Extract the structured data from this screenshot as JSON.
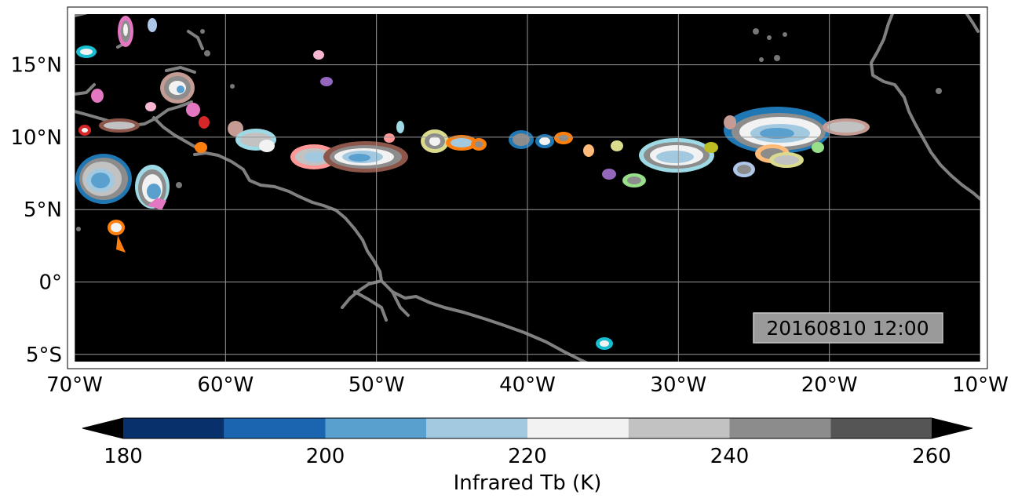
{
  "map": {
    "lon_labels": [
      "70°W",
      "60°W",
      "50°W",
      "40°W",
      "30°W",
      "20°W",
      "10°W"
    ],
    "lat_labels": [
      "15°N",
      "10°N",
      "5°N",
      "0°",
      "5°S"
    ],
    "lon_range": [
      -70,
      -10
    ],
    "lat_range": [
      -5.5,
      18.5
    ],
    "gridlines": true,
    "background_color": "#000000",
    "coastline_color": "#808080",
    "timestamp": "20160810 12:00"
  },
  "colorbar": {
    "title": "Infrared Tb (K)",
    "tick_labels": [
      "180",
      "200",
      "220",
      "240",
      "260"
    ],
    "levels": [
      180,
      190,
      200,
      210,
      220,
      230,
      240,
      250,
      260
    ],
    "colors": [
      "#08306b",
      "#1a64b0",
      "#5aa0cf",
      "#a2c9e0",
      "#f2f2f2",
      "#c2c2c2",
      "#8c8c8c",
      "#555555"
    ],
    "under_color": "#000000",
    "over_color": "#000000",
    "extend": "both"
  },
  "cloud_clusters": [
    {
      "lon": -68,
      "lat": 7,
      "outline": "#1f77b4"
    },
    {
      "lon": -64,
      "lat": 6.5,
      "outline": "#9edae5"
    },
    {
      "lon": -63,
      "lat": 12.5,
      "outline": "#c49c94"
    },
    {
      "lon": -66.5,
      "lat": 17,
      "outline": "#e377c2"
    },
    {
      "lon": -69.5,
      "lat": 15.5,
      "outline": "#17becf"
    },
    {
      "lon": -57.5,
      "lat": 9.5,
      "outline": "#9edae5"
    },
    {
      "lon": -54.5,
      "lat": 8.5,
      "outline": "#ff9896"
    },
    {
      "lon": -50,
      "lat": 8.5,
      "outline": "#8c564b"
    },
    {
      "lon": -46,
      "lat": 9.7,
      "outline": "#dbdb8d"
    },
    {
      "lon": -44.5,
      "lat": 9.5,
      "outline": "#ff7f0e"
    },
    {
      "lon": -39.5,
      "lat": 9.7,
      "outline": "#1f77b4"
    },
    {
      "lon": -29.5,
      "lat": 8.8,
      "outline": "#9edae5"
    },
    {
      "lon": -23,
      "lat": 10.5,
      "outline": "#1f77b4"
    },
    {
      "lon": -18.5,
      "lat": 10.8,
      "outline": "#c49c94"
    },
    {
      "lon": -67,
      "lat": 3.7,
      "outline": "#ff7f0e"
    },
    {
      "lon": -35,
      "lat": -3.9,
      "outline": "#17becf"
    }
  ]
}
